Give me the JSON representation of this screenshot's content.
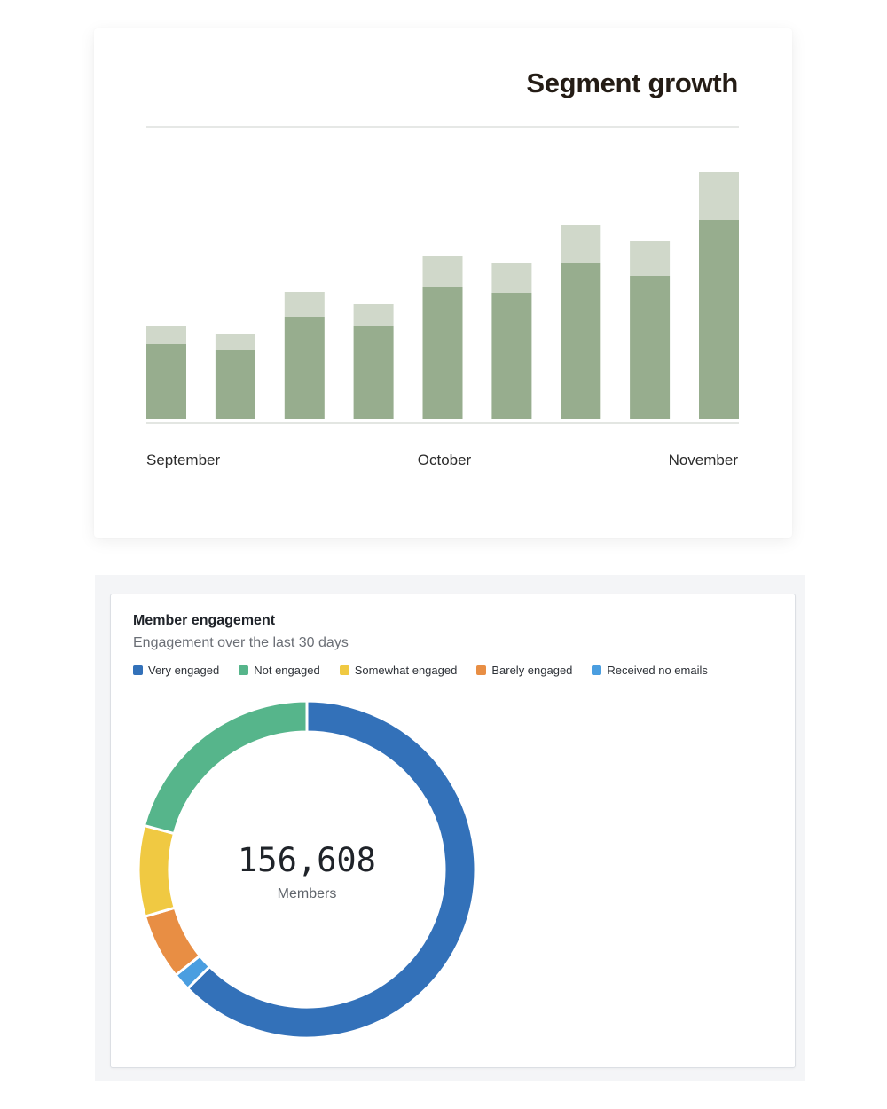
{
  "segment_card": {
    "title": "Segment growth"
  },
  "engagement_card": {
    "title": "Member engagement",
    "subtitle": "Engagement over the last 30 days",
    "total_value": "156,608",
    "total_label": "Members"
  },
  "colors": {
    "bar_base": "#97ad8e",
    "bar_top": "#d0d8ca",
    "very_engaged": "#3371b9",
    "not_engaged": "#56b58b",
    "somewhat_engaged": "#f0c942",
    "barely_engaged": "#e88e44",
    "received_no_emails": "#4a9ee0"
  },
  "chart_data": [
    {
      "type": "bar",
      "stacked": true,
      "title": "Segment growth",
      "x_tick_labels": [
        "September",
        "October",
        "November"
      ],
      "bar_count": 9,
      "series": [
        {
          "values": [
            84,
            77,
            115,
            104,
            148,
            142,
            176,
            161,
            224
          ]
        },
        {
          "values": [
            20,
            18,
            28,
            25,
            35,
            34,
            42,
            39,
            54
          ]
        }
      ],
      "grid": false
    },
    {
      "type": "pie",
      "donut": true,
      "title": "Member engagement",
      "subtitle": "Engagement over the last 30 days",
      "center_value": "156,608",
      "center_label": "Members",
      "legend_position": "top-left",
      "slices": [
        {
          "label": "Very engaged",
          "value": 62.5,
          "color": "#3371b9"
        },
        {
          "label": "Received no emails",
          "value": 1.7,
          "color": "#4a9ee0"
        },
        {
          "label": "Barely engaged",
          "value": 6.3,
          "color": "#e88e44"
        },
        {
          "label": "Somewhat engaged",
          "value": 8.7,
          "color": "#f0c942"
        },
        {
          "label": "Not engaged",
          "value": 20.8,
          "color": "#56b58b"
        }
      ],
      "legend": [
        "Very engaged",
        "Not engaged",
        "Somewhat engaged",
        "Barely engaged",
        "Received no emails"
      ]
    }
  ]
}
